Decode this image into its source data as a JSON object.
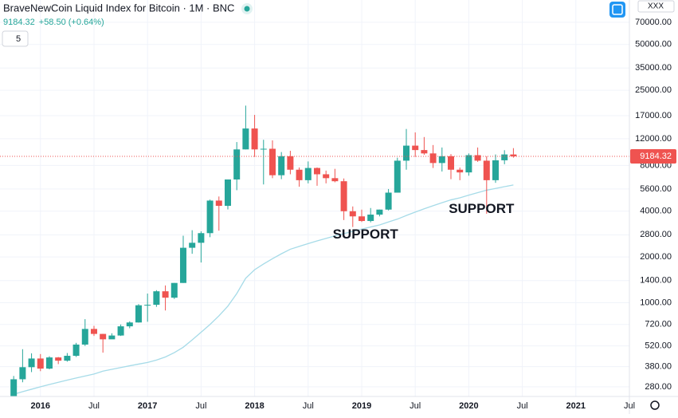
{
  "chart_data": {
    "type": "candlestick",
    "title": "BraveNewCoin Liquid Index for Bitcoin · 1M · BNC",
    "change": "+58.50 (+0.64%)",
    "indicator_button": "5",
    "scale_button": "XXX",
    "annotations": [
      {
        "text": "SUPPORT",
        "x": "2018-11",
        "y": 2800
      },
      {
        "text": "SUPPORT",
        "x": "2019-12",
        "y": 4100
      }
    ],
    "up_color": "#26a69a",
    "down_color": "#ef5350",
    "ma_color": "#a6dbe8",
    "log_scale": true,
    "x": [
      "2015-10",
      "2015-11",
      "2015-12",
      "2016-01",
      "2016-02",
      "2016-03",
      "2016-04",
      "2016-05",
      "2016-06",
      "2016-07",
      "2016-08",
      "2016-09",
      "2016-10",
      "2016-11",
      "2016-12",
      "2017-01",
      "2017-02",
      "2017-03",
      "2017-04",
      "2017-05",
      "2017-06",
      "2017-07",
      "2017-08",
      "2017-09",
      "2017-10",
      "2017-11",
      "2017-12",
      "2018-01",
      "2018-02",
      "2018-03",
      "2018-04",
      "2018-05",
      "2018-06",
      "2018-07",
      "2018-08",
      "2018-09",
      "2018-10",
      "2018-11",
      "2018-12",
      "2019-01",
      "2019-02",
      "2019-03",
      "2019-04",
      "2019-05",
      "2019-06",
      "2019-07",
      "2019-08",
      "2019-09",
      "2019-10",
      "2019-11",
      "2019-12",
      "2020-01",
      "2020-02",
      "2020-03",
      "2020-04",
      "2020-05",
      "2020-06"
    ],
    "open": [
      236,
      314,
      377,
      430,
      369,
      437,
      416,
      448,
      531,
      673,
      624,
      575,
      609,
      700,
      742,
      963,
      970,
      1190,
      1080,
      1350,
      2300,
      2480,
      2870,
      4700,
      4340,
      6470,
      10200,
      14000,
      10200,
      10300,
      6900,
      9200,
      7500,
      6400,
      7700,
      7000,
      6600,
      6300,
      4000,
      3700,
      3450,
      3800,
      4100,
      5300,
      8600,
      10800,
      10100,
      9600,
      8300,
      9200,
      7500,
      7200,
      9350,
      8600,
      6400,
      8650,
      9450
    ],
    "high": [
      330,
      495,
      465,
      460,
      445,
      440,
      467,
      545,
      780,
      705,
      625,
      630,
      720,
      755,
      980,
      1150,
      1210,
      1300,
      1350,
      2760,
      3000,
      2950,
      4770,
      5000,
      6470,
      11400,
      19800,
      17200,
      11800,
      11700,
      9800,
      9990,
      7760,
      8500,
      7760,
      7400,
      7600,
      6570,
      4300,
      4100,
      4200,
      4100,
      5600,
      9000,
      13900,
      13200,
      12300,
      10900,
      10500,
      9500,
      7750,
      9600,
      10500,
      9200,
      9450,
      10080,
      10400
    ],
    "low": [
      236,
      300,
      350,
      355,
      365,
      395,
      410,
      440,
      520,
      605,
      470,
      580,
      605,
      680,
      740,
      750,
      940,
      890,
      1060,
      1350,
      2100,
      1840,
      2700,
      2980,
      4110,
      5500,
      10200,
      9100,
      6000,
      6600,
      6500,
      7000,
      5800,
      6100,
      5880,
      6100,
      6200,
      3500,
      3150,
      3400,
      3380,
      3700,
      4050,
      5300,
      7500,
      9100,
      9400,
      7700,
      7300,
      6500,
      6400,
      6850,
      8450,
      3850,
      6150,
      8150,
      9000
    ],
    "close": [
      314,
      377,
      430,
      369,
      437,
      416,
      448,
      531,
      673,
      624,
      575,
      609,
      700,
      742,
      963,
      970,
      1190,
      1080,
      1350,
      2300,
      2480,
      2870,
      4700,
      4340,
      6470,
      10200,
      14000,
      10200,
      10300,
      6900,
      9200,
      7500,
      6400,
      7700,
      7000,
      6600,
      6300,
      4000,
      3700,
      3450,
      3800,
      4100,
      5300,
      8600,
      10800,
      10100,
      9600,
      8300,
      9200,
      7500,
      7200,
      9350,
      8600,
      6400,
      8650,
      9450,
      9184.32
    ],
    "ma": [
      250,
      260,
      270,
      280,
      290,
      300,
      310,
      320,
      330,
      340,
      355,
      365,
      375,
      385,
      395,
      405,
      420,
      440,
      470,
      510,
      570,
      640,
      720,
      820,
      950,
      1150,
      1450,
      1650,
      1800,
      1950,
      2100,
      2250,
      2350,
      2450,
      2550,
      2650,
      2750,
      2850,
      2950,
      3050,
      3150,
      3250,
      3400,
      3550,
      3750,
      3950,
      4150,
      4350,
      4550,
      4750,
      4900,
      5100,
      5300,
      5500,
      5650,
      5800,
      5950
    ],
    "xlim": [
      "2015-08-15",
      "2021-07"
    ],
    "xticks": [
      {
        "value": "2016-01",
        "label": "2016"
      },
      {
        "value": "2016-07",
        "label": "Jul"
      },
      {
        "value": "2017-01",
        "label": "2017"
      },
      {
        "value": "2017-07",
        "label": "Jul"
      },
      {
        "value": "2018-01",
        "label": "2018"
      },
      {
        "value": "2018-07",
        "label": "Jul"
      },
      {
        "value": "2019-01",
        "label": "2019"
      },
      {
        "value": "2019-07",
        "label": "Jul"
      },
      {
        "value": "2020-01",
        "label": "2020"
      },
      {
        "value": "2020-07",
        "label": "Jul"
      },
      {
        "value": "2021-01",
        "label": "2021"
      },
      {
        "value": "2021-07",
        "label": "Jul"
      }
    ],
    "ylim": [
      242,
      98000
    ],
    "yticks": [
      {
        "value": 70000,
        "label": "70000.00"
      },
      {
        "value": 50000,
        "label": "50000.00"
      },
      {
        "value": 35000,
        "label": "35000.00"
      },
      {
        "value": 25000,
        "label": "25000.00"
      },
      {
        "value": 17000,
        "label": "17000.00"
      },
      {
        "value": 12000,
        "label": "12000.00"
      },
      {
        "value": 8000,
        "label": "8000.00"
      },
      {
        "value": 5600,
        "label": "5600.00"
      },
      {
        "value": 4000,
        "label": "4000.00"
      },
      {
        "value": 2800,
        "label": "2800.00"
      },
      {
        "value": 2000,
        "label": "2000.00"
      },
      {
        "value": 1400,
        "label": "1400.00"
      },
      {
        "value": 1000,
        "label": "1000.00"
      },
      {
        "value": 720,
        "label": "720.00"
      },
      {
        "value": 520,
        "label": "520.00"
      },
      {
        "value": 380,
        "label": "380.00"
      },
      {
        "value": 280,
        "label": "280.00"
      }
    ]
  }
}
